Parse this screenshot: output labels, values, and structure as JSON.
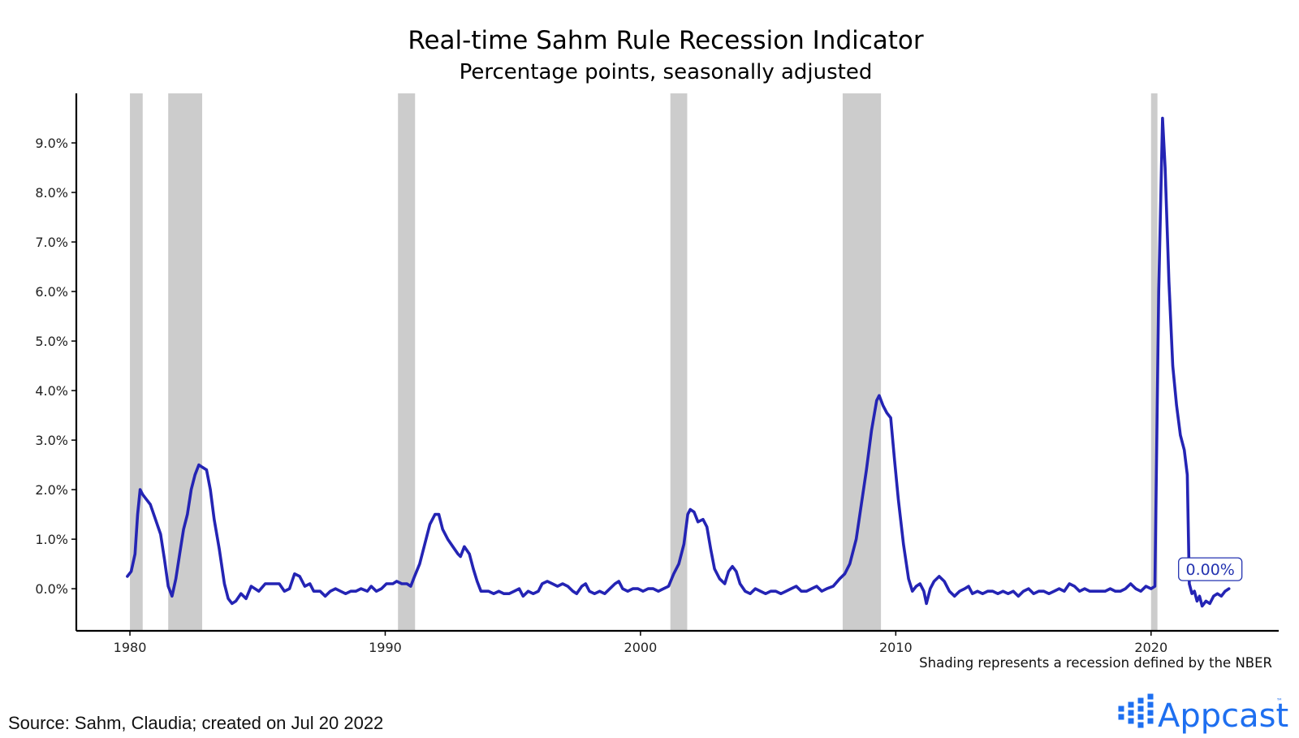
{
  "chart_data": {
    "type": "line",
    "title": "Real-time Sahm Rule Recession Indicator",
    "subtitle": "Percentage points, seasonally adjusted",
    "xlabel": "",
    "ylabel": "",
    "x_ticks": [
      "1980",
      "1990",
      "2000",
      "2010",
      "2020"
    ],
    "y_ticks": [
      "0.0%",
      "1.0%",
      "2.0%",
      "3.0%",
      "4.0%",
      "5.0%",
      "6.0%",
      "7.0%",
      "8.0%",
      "9.0%"
    ],
    "xlim": [
      1977.9,
      2025
    ],
    "ylim": [
      -0.85,
      10.0
    ],
    "grid": false,
    "line_color": "#2424b4",
    "recession_color": "#cccccc",
    "recessions": [
      [
        1980.0,
        1980.5
      ],
      [
        1981.5,
        1982.83
      ],
      [
        1990.5,
        1991.17
      ],
      [
        2001.17,
        2001.83
      ],
      [
        2007.92,
        2009.42
      ],
      [
        2020.0,
        2020.25
      ]
    ],
    "series": [
      {
        "values": [
          [
            1979.9,
            0.25
          ],
          [
            1980.05,
            0.35
          ],
          [
            1980.2,
            0.7
          ],
          [
            1980.3,
            1.5
          ],
          [
            1980.4,
            2.0
          ],
          [
            1980.5,
            1.9
          ],
          [
            1980.65,
            1.8
          ],
          [
            1980.8,
            1.7
          ],
          [
            1981.0,
            1.4
          ],
          [
            1981.2,
            1.1
          ],
          [
            1981.35,
            0.6
          ],
          [
            1981.5,
            0.05
          ],
          [
            1981.65,
            -0.15
          ],
          [
            1981.8,
            0.2
          ],
          [
            1981.95,
            0.7
          ],
          [
            1982.1,
            1.2
          ],
          [
            1982.25,
            1.5
          ],
          [
            1982.4,
            2.0
          ],
          [
            1982.55,
            2.3
          ],
          [
            1982.7,
            2.5
          ],
          [
            1982.85,
            2.45
          ],
          [
            1983.0,
            2.4
          ],
          [
            1983.15,
            2.0
          ],
          [
            1983.3,
            1.4
          ],
          [
            1983.5,
            0.8
          ],
          [
            1983.7,
            0.1
          ],
          [
            1983.85,
            -0.2
          ],
          [
            1984.0,
            -0.3
          ],
          [
            1984.15,
            -0.25
          ],
          [
            1984.35,
            -0.1
          ],
          [
            1984.55,
            -0.2
          ],
          [
            1984.75,
            0.05
          ],
          [
            1984.9,
            0.0
          ],
          [
            1985.05,
            -0.05
          ],
          [
            1985.3,
            0.1
          ],
          [
            1985.6,
            0.1
          ],
          [
            1985.85,
            0.1
          ],
          [
            1986.05,
            -0.05
          ],
          [
            1986.25,
            0.0
          ],
          [
            1986.45,
            0.3
          ],
          [
            1986.65,
            0.25
          ],
          [
            1986.85,
            0.05
          ],
          [
            1987.05,
            0.1
          ],
          [
            1987.2,
            -0.05
          ],
          [
            1987.45,
            -0.05
          ],
          [
            1987.65,
            -0.15
          ],
          [
            1987.85,
            -0.05
          ],
          [
            1988.05,
            0.0
          ],
          [
            1988.25,
            -0.05
          ],
          [
            1988.45,
            -0.1
          ],
          [
            1988.65,
            -0.05
          ],
          [
            1988.85,
            -0.05
          ],
          [
            1989.05,
            0.0
          ],
          [
            1989.3,
            -0.05
          ],
          [
            1989.45,
            0.05
          ],
          [
            1989.65,
            -0.05
          ],
          [
            1989.85,
            0.0
          ],
          [
            1990.05,
            0.1
          ],
          [
            1990.3,
            0.1
          ],
          [
            1990.45,
            0.15
          ],
          [
            1990.65,
            0.1
          ],
          [
            1990.85,
            0.1
          ],
          [
            1991.0,
            0.05
          ],
          [
            1991.15,
            0.25
          ],
          [
            1991.35,
            0.5
          ],
          [
            1991.55,
            0.9
          ],
          [
            1991.75,
            1.3
          ],
          [
            1991.95,
            1.5
          ],
          [
            1992.1,
            1.5
          ],
          [
            1992.25,
            1.2
          ],
          [
            1992.45,
            1.0
          ],
          [
            1992.65,
            0.85
          ],
          [
            1992.85,
            0.7
          ],
          [
            1992.95,
            0.65
          ],
          [
            1993.1,
            0.85
          ],
          [
            1993.3,
            0.7
          ],
          [
            1993.45,
            0.4
          ],
          [
            1993.6,
            0.15
          ],
          [
            1993.75,
            -0.05
          ],
          [
            1993.9,
            -0.05
          ],
          [
            1994.05,
            -0.05
          ],
          [
            1994.25,
            -0.1
          ],
          [
            1994.45,
            -0.05
          ],
          [
            1994.65,
            -0.1
          ],
          [
            1994.85,
            -0.1
          ],
          [
            1995.05,
            -0.05
          ],
          [
            1995.25,
            0.0
          ],
          [
            1995.4,
            -0.15
          ],
          [
            1995.6,
            -0.05
          ],
          [
            1995.8,
            -0.1
          ],
          [
            1996.0,
            -0.05
          ],
          [
            1996.15,
            0.1
          ],
          [
            1996.35,
            0.15
          ],
          [
            1996.55,
            0.1
          ],
          [
            1996.75,
            0.05
          ],
          [
            1996.95,
            0.1
          ],
          [
            1997.15,
            0.05
          ],
          [
            1997.35,
            -0.05
          ],
          [
            1997.5,
            -0.1
          ],
          [
            1997.7,
            0.05
          ],
          [
            1997.85,
            0.1
          ],
          [
            1998.0,
            -0.05
          ],
          [
            1998.2,
            -0.1
          ],
          [
            1998.4,
            -0.05
          ],
          [
            1998.6,
            -0.1
          ],
          [
            1998.8,
            0.0
          ],
          [
            1999.0,
            0.1
          ],
          [
            1999.15,
            0.15
          ],
          [
            1999.3,
            0.0
          ],
          [
            1999.5,
            -0.05
          ],
          [
            1999.7,
            0.0
          ],
          [
            1999.9,
            0.0
          ],
          [
            2000.1,
            -0.05
          ],
          [
            2000.3,
            0.0
          ],
          [
            2000.5,
            0.0
          ],
          [
            2000.7,
            -0.05
          ],
          [
            2000.9,
            0.0
          ],
          [
            2001.1,
            0.05
          ],
          [
            2001.3,
            0.3
          ],
          [
            2001.5,
            0.5
          ],
          [
            2001.7,
            0.9
          ],
          [
            2001.85,
            1.5
          ],
          [
            2001.95,
            1.6
          ],
          [
            2002.1,
            1.55
          ],
          [
            2002.25,
            1.35
          ],
          [
            2002.45,
            1.4
          ],
          [
            2002.6,
            1.25
          ],
          [
            2002.75,
            0.8
          ],
          [
            2002.9,
            0.4
          ],
          [
            2003.1,
            0.2
          ],
          [
            2003.3,
            0.1
          ],
          [
            2003.45,
            0.35
          ],
          [
            2003.6,
            0.45
          ],
          [
            2003.75,
            0.35
          ],
          [
            2003.9,
            0.1
          ],
          [
            2004.1,
            -0.05
          ],
          [
            2004.3,
            -0.1
          ],
          [
            2004.5,
            0.0
          ],
          [
            2004.7,
            -0.05
          ],
          [
            2004.9,
            -0.1
          ],
          [
            2005.1,
            -0.05
          ],
          [
            2005.3,
            -0.05
          ],
          [
            2005.5,
            -0.1
          ],
          [
            2005.7,
            -0.05
          ],
          [
            2005.9,
            0.0
          ],
          [
            2006.1,
            0.05
          ],
          [
            2006.3,
            -0.05
          ],
          [
            2006.5,
            -0.05
          ],
          [
            2006.7,
            0.0
          ],
          [
            2006.9,
            0.05
          ],
          [
            2007.1,
            -0.05
          ],
          [
            2007.3,
            0.0
          ],
          [
            2007.55,
            0.05
          ],
          [
            2007.8,
            0.2
          ],
          [
            2008.0,
            0.3
          ],
          [
            2008.2,
            0.5
          ],
          [
            2008.45,
            1.0
          ],
          [
            2008.65,
            1.7
          ],
          [
            2008.85,
            2.4
          ],
          [
            2009.05,
            3.2
          ],
          [
            2009.25,
            3.8
          ],
          [
            2009.35,
            3.9
          ],
          [
            2009.5,
            3.7
          ],
          [
            2009.65,
            3.55
          ],
          [
            2009.8,
            3.45
          ],
          [
            2009.95,
            2.6
          ],
          [
            2010.1,
            1.8
          ],
          [
            2010.3,
            0.9
          ],
          [
            2010.5,
            0.2
          ],
          [
            2010.65,
            -0.05
          ],
          [
            2010.8,
            0.05
          ],
          [
            2010.95,
            0.1
          ],
          [
            2011.1,
            -0.05
          ],
          [
            2011.2,
            -0.3
          ],
          [
            2011.35,
            0.0
          ],
          [
            2011.5,
            0.15
          ],
          [
            2011.7,
            0.25
          ],
          [
            2011.9,
            0.15
          ],
          [
            2012.1,
            -0.05
          ],
          [
            2012.3,
            -0.15
          ],
          [
            2012.5,
            -0.05
          ],
          [
            2012.7,
            0.0
          ],
          [
            2012.85,
            0.05
          ],
          [
            2013.0,
            -0.1
          ],
          [
            2013.2,
            -0.05
          ],
          [
            2013.4,
            -0.1
          ],
          [
            2013.6,
            -0.05
          ],
          [
            2013.8,
            -0.05
          ],
          [
            2014.0,
            -0.1
          ],
          [
            2014.2,
            -0.05
          ],
          [
            2014.4,
            -0.1
          ],
          [
            2014.6,
            -0.05
          ],
          [
            2014.8,
            -0.15
          ],
          [
            2015.0,
            -0.05
          ],
          [
            2015.2,
            0.0
          ],
          [
            2015.4,
            -0.1
          ],
          [
            2015.6,
            -0.05
          ],
          [
            2015.8,
            -0.05
          ],
          [
            2016.0,
            -0.1
          ],
          [
            2016.2,
            -0.05
          ],
          [
            2016.4,
            0.0
          ],
          [
            2016.6,
            -0.05
          ],
          [
            2016.8,
            0.1
          ],
          [
            2017.0,
            0.05
          ],
          [
            2017.2,
            -0.05
          ],
          [
            2017.4,
            0.0
          ],
          [
            2017.6,
            -0.05
          ],
          [
            2017.8,
            -0.05
          ],
          [
            2018.0,
            -0.05
          ],
          [
            2018.2,
            -0.05
          ],
          [
            2018.4,
            0.0
          ],
          [
            2018.6,
            -0.05
          ],
          [
            2018.8,
            -0.05
          ],
          [
            2019.0,
            0.0
          ],
          [
            2019.2,
            0.1
          ],
          [
            2019.4,
            0.0
          ],
          [
            2019.6,
            -0.05
          ],
          [
            2019.8,
            0.05
          ],
          [
            2020.0,
            0.0
          ],
          [
            2020.15,
            0.05
          ],
          [
            2020.3,
            6.0
          ],
          [
            2020.45,
            9.5
          ],
          [
            2020.55,
            8.5
          ],
          [
            2020.7,
            6.2
          ],
          [
            2020.85,
            4.5
          ],
          [
            2021.0,
            3.7
          ],
          [
            2021.15,
            3.1
          ],
          [
            2021.3,
            2.8
          ],
          [
            2021.42,
            2.3
          ],
          [
            2021.5,
            0.1
          ],
          [
            2021.6,
            -0.1
          ],
          [
            2021.7,
            -0.05
          ],
          [
            2021.8,
            -0.25
          ],
          [
            2021.9,
            -0.15
          ],
          [
            2022.0,
            -0.35
          ],
          [
            2022.15,
            -0.25
          ],
          [
            2022.3,
            -0.3
          ],
          [
            2022.45,
            -0.15
          ],
          [
            2022.6,
            -0.1
          ],
          [
            2022.75,
            -0.15
          ],
          [
            2022.9,
            -0.05
          ],
          [
            2023.05,
            0.0
          ]
        ]
      }
    ],
    "annotations": [
      {
        "text": "0.00%",
        "x": 2023.05,
        "y": 0.0
      }
    ]
  },
  "footer": {
    "nber_note": "Shading represents a recession defined by the NBER",
    "source": "Source: Sahm, Claudia; created on Jul 20 2022",
    "logo_text": "Appcast",
    "logo_mark": "™",
    "logo_color": "#1e6ff0"
  }
}
